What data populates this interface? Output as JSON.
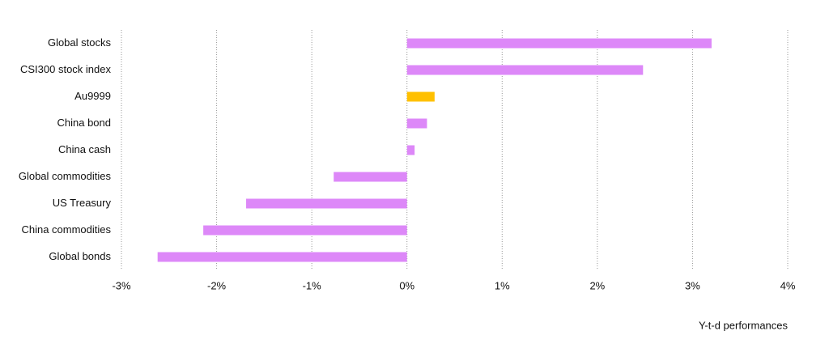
{
  "chart_data": {
    "type": "hbar",
    "categories": [
      "Global stocks",
      "CSI300 stock index",
      "Au9999",
      "China bond",
      "China cash",
      "Global commodities",
      "US Treasury",
      "China commodities",
      "Global bonds"
    ],
    "values": [
      3.2,
      2.48,
      0.29,
      0.21,
      0.08,
      -0.77,
      -1.69,
      -2.14,
      -2.62
    ],
    "colors": [
      "#dd88f8",
      "#dd88f8",
      "#ffc000",
      "#dd88f8",
      "#dd88f8",
      "#dd88f8",
      "#dd88f8",
      "#dd88f8",
      "#dd88f8"
    ],
    "xlabel": "Y-t-d performances",
    "xlim": [
      -3,
      4
    ],
    "xticks": [
      {
        "value": -3,
        "label": "-3%"
      },
      {
        "value": -2,
        "label": "-2%"
      },
      {
        "value": -1,
        "label": "-1%"
      },
      {
        "value": 0,
        "label": "0%"
      },
      {
        "value": 1,
        "label": "1%"
      },
      {
        "value": 2,
        "label": "2%"
      },
      {
        "value": 3,
        "label": "3%"
      },
      {
        "value": 4,
        "label": "4%"
      }
    ],
    "grid": true
  }
}
